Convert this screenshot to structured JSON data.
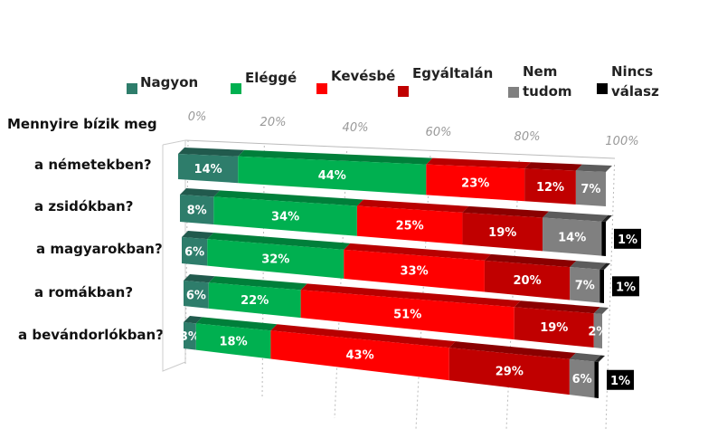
{
  "chart_data": {
    "type": "bar",
    "orientation": "horizontal-stacked-100",
    "title": "",
    "question_label": "Mennyire bízik meg",
    "categories": [
      "a németekben?",
      "a zsidókban?",
      "a magyarokban?",
      "a romákban?",
      "a bevándorlókban?"
    ],
    "series": [
      {
        "name": "Nagyon",
        "color": "#2e7d6b",
        "values": [
          14,
          8,
          6,
          6,
          3
        ]
      },
      {
        "name": "Eléggé",
        "color": "#00b050",
        "values": [
          44,
          34,
          32,
          22,
          18
        ]
      },
      {
        "name": "Kevésbé",
        "color": "#ff0000",
        "values": [
          23,
          25,
          33,
          51,
          43
        ]
      },
      {
        "name": "Egyáltalán",
        "color": "#c00000",
        "values": [
          12,
          19,
          20,
          19,
          29
        ]
      },
      {
        "name": "Nem tudom",
        "color": "#808080",
        "values": [
          7,
          14,
          7,
          2,
          6
        ]
      },
      {
        "name": "Nincs válasz",
        "color": "#000000",
        "values": [
          0,
          1,
          1,
          0,
          1
        ]
      }
    ],
    "legend_lines": [
      [
        "Nagyon"
      ],
      [
        "Eléggé"
      ],
      [
        "Kevésbé"
      ],
      [
        "Egyáltalán"
      ],
      [
        "Nem",
        "tudom"
      ],
      [
        "Nincs",
        "válasz"
      ]
    ],
    "x_ticks": [
      "0%",
      "20%",
      "40%",
      "60%",
      "80%",
      "100%"
    ],
    "xlim": [
      0,
      100
    ],
    "legend_position": "top",
    "grid": true
  }
}
